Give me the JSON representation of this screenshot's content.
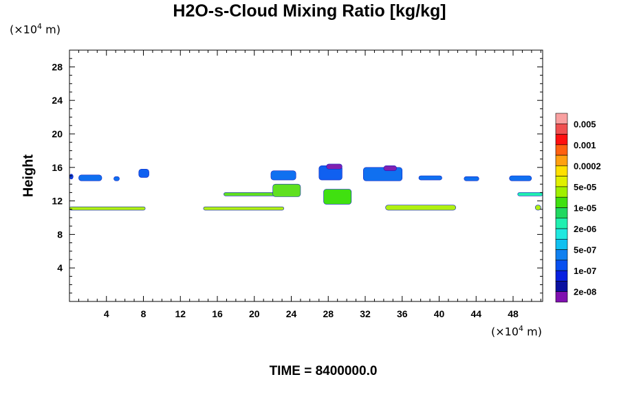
{
  "chart_data": {
    "type": "contour",
    "title": "H2O-s-Cloud Mixing Ratio [kg/kg]",
    "ylabel": "Height",
    "xlabel": "",
    "x_unit": "(×10⁴ m)",
    "y_unit": "(×10⁴ m)",
    "time_label": "TIME = 8400000.0",
    "xlim": [
      0,
      51.2
    ],
    "ylim": [
      0,
      30
    ],
    "x_ticks": [
      4,
      8,
      12,
      16,
      20,
      24,
      28,
      32,
      36,
      40,
      44,
      48
    ],
    "y_ticks": [
      4,
      8,
      12,
      16,
      20,
      24,
      28
    ],
    "legend": {
      "labels": [
        "0.005",
        "0.001",
        "0.0002",
        "5e-05",
        "1e-05",
        "2e-06",
        "5e-07",
        "1e-07",
        "2e-08"
      ],
      "colors": [
        "#f9a0a0",
        "#f05050",
        "#ff1010",
        "#ff6010",
        "#ffa010",
        "#ffe000",
        "#e0f000",
        "#a0f000",
        "#40e010",
        "#20d860",
        "#20f0b0",
        "#20e8e0",
        "#10c0f0",
        "#1080f0",
        "#0850f0",
        "#0820e0",
        "#0a10a0",
        "#8010b0"
      ]
    },
    "features": [
      {
        "x0": 0.0,
        "x1": 0.4,
        "y0": 14.6,
        "y1": 15.2,
        "color": "#1040e0"
      },
      {
        "x0": 1.0,
        "x1": 3.5,
        "y0": 14.4,
        "y1": 15.1,
        "color": "#1070f0"
      },
      {
        "x0": 4.8,
        "x1": 5.4,
        "y0": 14.4,
        "y1": 14.9,
        "color": "#1070f0"
      },
      {
        "x0": 7.5,
        "x1": 8.6,
        "y0": 14.8,
        "y1": 15.8,
        "color": "#1060f0"
      },
      {
        "x0": 0.0,
        "x1": 8.2,
        "y0": 10.9,
        "y1": 11.3,
        "color": "#b0f010"
      },
      {
        "x0": 14.5,
        "x1": 23.2,
        "y0": 10.9,
        "y1": 11.3,
        "color": "#b0f010"
      },
      {
        "x0": 16.7,
        "x1": 23.5,
        "y0": 12.6,
        "y1": 13.0,
        "color": "#60e020"
      },
      {
        "x0": 22.0,
        "x1": 25.0,
        "y0": 12.5,
        "y1": 14.0,
        "color": "#60e020"
      },
      {
        "x0": 21.8,
        "x1": 24.5,
        "y0": 14.5,
        "y1": 15.6,
        "color": "#1070f0"
      },
      {
        "x0": 27.0,
        "x1": 29.5,
        "y0": 14.5,
        "y1": 16.2,
        "color": "#1060f0"
      },
      {
        "x0": 27.8,
        "x1": 29.5,
        "y0": 15.8,
        "y1": 16.4,
        "color": "#8020b0"
      },
      {
        "x0": 27.5,
        "x1": 30.5,
        "y0": 11.6,
        "y1": 13.4,
        "color": "#40e010"
      },
      {
        "x0": 31.8,
        "x1": 36.0,
        "y0": 14.4,
        "y1": 16.0,
        "color": "#1070f0"
      },
      {
        "x0": 34.0,
        "x1": 35.4,
        "y0": 15.6,
        "y1": 16.2,
        "color": "#8020b0"
      },
      {
        "x0": 34.2,
        "x1": 41.8,
        "y0": 10.9,
        "y1": 11.5,
        "color": "#b0f010"
      },
      {
        "x0": 37.8,
        "x1": 40.3,
        "y0": 14.5,
        "y1": 15.0,
        "color": "#1070f0"
      },
      {
        "x0": 42.7,
        "x1": 44.3,
        "y0": 14.4,
        "y1": 14.9,
        "color": "#1070f0"
      },
      {
        "x0": 47.6,
        "x1": 50.0,
        "y0": 14.4,
        "y1": 15.0,
        "color": "#1070f0"
      },
      {
        "x0": 48.5,
        "x1": 51.2,
        "y0": 12.6,
        "y1": 13.0,
        "color": "#20f0b0"
      },
      {
        "x0": 50.4,
        "x1": 51.0,
        "y0": 10.9,
        "y1": 11.5,
        "color": "#b0f010"
      }
    ]
  }
}
